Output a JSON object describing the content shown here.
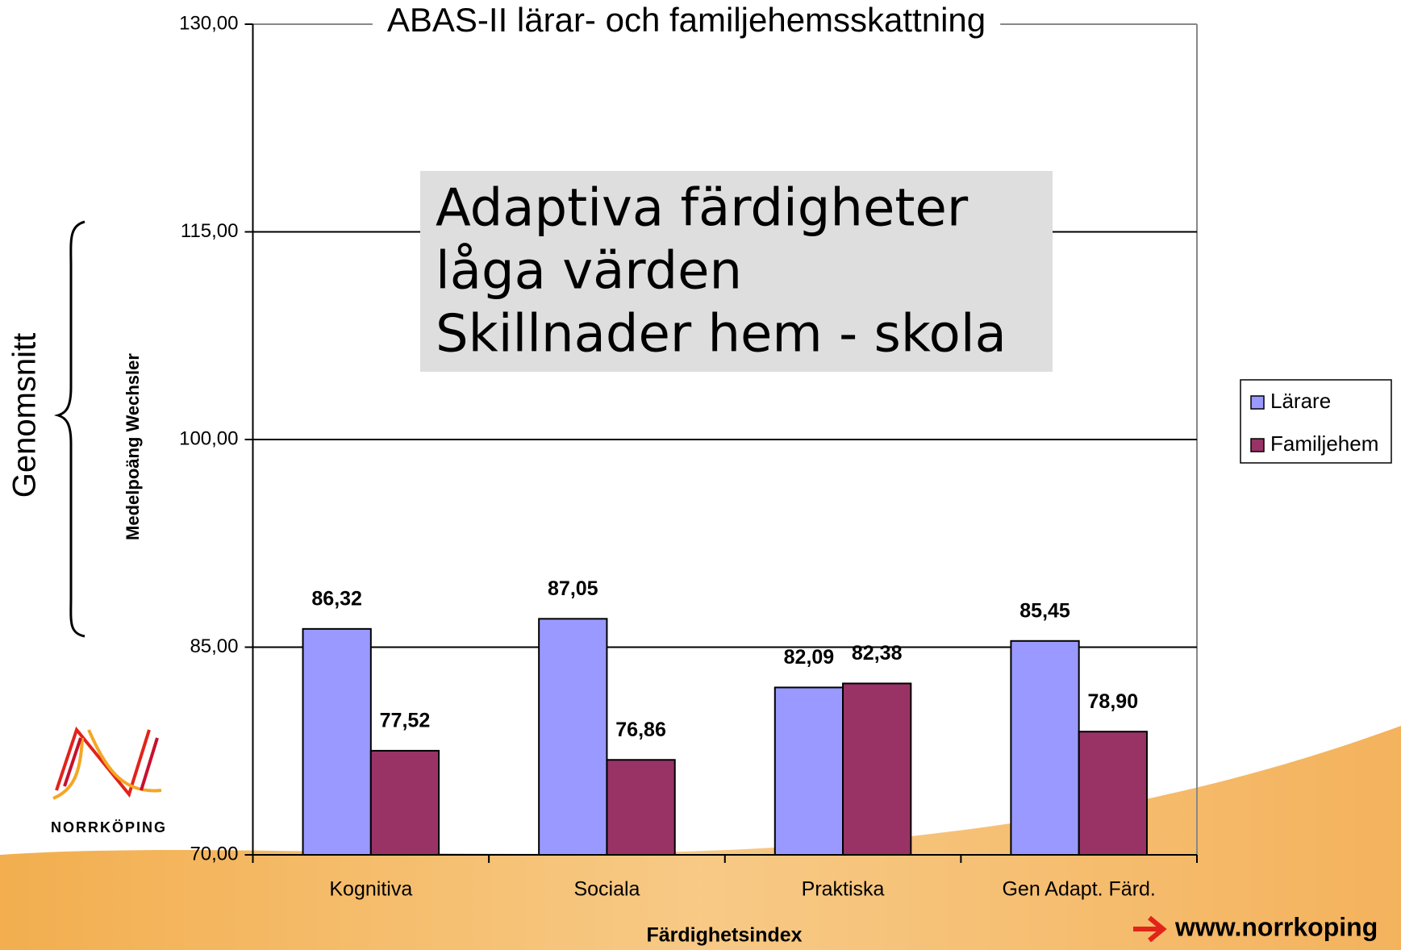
{
  "chart_data": {
    "type": "bar",
    "title": "ABAS-II lärar- och familjehemsskattning",
    "x_label": "Färdighetsindex",
    "y_label": "Medelpoäng Wechsler",
    "categories": [
      "Kognitiva",
      "Sociala",
      "Praktiska",
      "Gen Adapt. Färd."
    ],
    "series": [
      {
        "name": "Lärare",
        "color": "#9999ff",
        "values": [
          86.32,
          87.05,
          82.09,
          85.45
        ],
        "value_labels": [
          "86,32",
          "87,05",
          "82,09",
          "85,45"
        ]
      },
      {
        "name": "Familjehem",
        "color": "#993366",
        "values": [
          77.52,
          76.86,
          82.38,
          78.9
        ],
        "value_labels": [
          "77,52",
          "76,86",
          "82,38",
          "78,90"
        ]
      }
    ],
    "ylim": [
      70,
      130
    ],
    "yticks": [
      {
        "value": 70,
        "label": "70,00"
      },
      {
        "value": 85,
        "label": "85,00"
      },
      {
        "value": 100,
        "label": "100,00"
      },
      {
        "value": 115,
        "label": "115,00"
      },
      {
        "value": 130,
        "label": "130,00"
      }
    ],
    "grid": true,
    "legend": "right",
    "annotation": [
      "Adaptiva färdigheter",
      "låga värden",
      "Skillnader hem - skola"
    ],
    "bracket_label": "Genomsnitt"
  },
  "logo": {
    "text": "NORRKÖPING"
  },
  "footer": {
    "url": "www.norrkoping"
  }
}
